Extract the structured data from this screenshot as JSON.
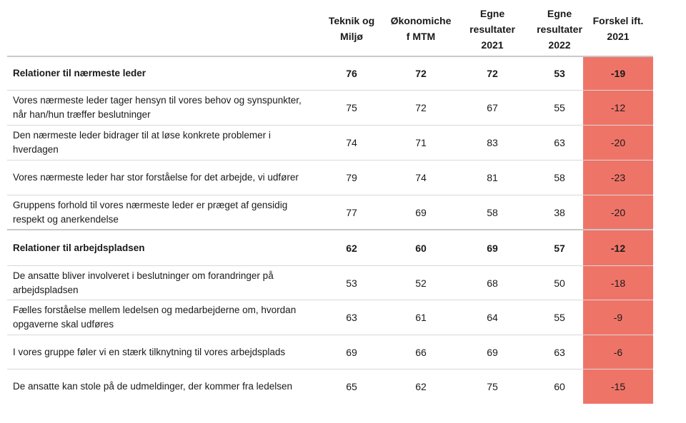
{
  "chart_data": {
    "type": "table",
    "colors": {
      "difference_fill": "#ef7468",
      "rule": "#d8d8d8"
    },
    "columns": [
      "Teknik og\nMiljø",
      "Økonomiche\nf MTM",
      "Egne\nresultater\n2021",
      "Egne\nresultater\n2022",
      "Forskel ift.\n2021"
    ],
    "rows": [
      {
        "label": "Relationer til nærmeste leder",
        "section": true,
        "values": [
          "76",
          "72",
          "72",
          "53",
          "-19"
        ]
      },
      {
        "label": "Vores nærmeste leder tager hensyn til vores behov og synspunkter, når han/hun træffer beslutninger",
        "section": false,
        "values": [
          "75",
          "72",
          "67",
          "55",
          "-12"
        ]
      },
      {
        "label": "Den nærmeste leder bidrager til at løse konkrete problemer i hverdagen",
        "section": false,
        "values": [
          "74",
          "71",
          "83",
          "63",
          "-20"
        ]
      },
      {
        "label": "Vores nærmeste leder har stor forståelse for det arbejde, vi udfører",
        "section": false,
        "values": [
          "79",
          "74",
          "81",
          "58",
          "-23"
        ]
      },
      {
        "label": "Gruppens forhold til vores nærmeste leder er præget af gensidig respekt og anerkendelse",
        "section": false,
        "values": [
          "77",
          "69",
          "58",
          "38",
          "-20"
        ]
      },
      {
        "label": "Relationer til arbejdspladsen",
        "section": true,
        "values": [
          "62",
          "60",
          "69",
          "57",
          "-12"
        ]
      },
      {
        "label": "De ansatte bliver involveret i beslutninger om forandringer på arbejdspladsen",
        "section": false,
        "values": [
          "53",
          "52",
          "68",
          "50",
          "-18"
        ]
      },
      {
        "label": "Fælles forståelse mellem ledelsen og medarbejderne om, hvordan opgaverne skal udføres",
        "section": false,
        "values": [
          "63",
          "61",
          "64",
          "55",
          "-9"
        ]
      },
      {
        "label": "I vores gruppe føler vi en stærk tilknytning til vores arbejdsplads",
        "section": false,
        "values": [
          "69",
          "66",
          "69",
          "63",
          "-6"
        ]
      },
      {
        "label": "De ansatte kan stole på de udmeldinger, der kommer fra ledelsen",
        "section": false,
        "values": [
          "65",
          "62",
          "75",
          "60",
          "-15"
        ]
      }
    ]
  }
}
